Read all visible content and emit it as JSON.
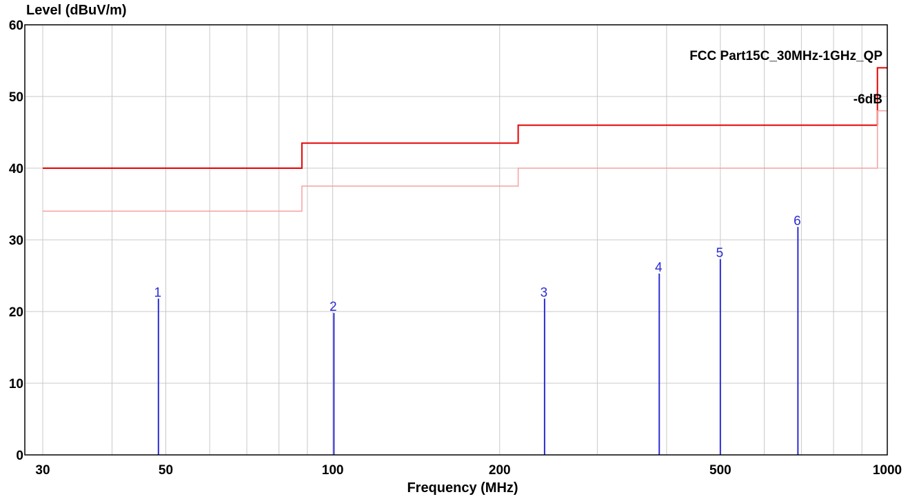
{
  "chart_data": {
    "type": "line",
    "ylabel": "Level (dBuV/m)",
    "xlabel": "Frequency (MHz)",
    "xscale": "log",
    "xlim": [
      30,
      1000
    ],
    "ylim": [
      0,
      60
    ],
    "grid": true,
    "x_ticks": [
      {
        "value": 30,
        "label": "30"
      },
      {
        "value": 50,
        "label": "50"
      },
      {
        "value": 100,
        "label": "100"
      },
      {
        "value": 200,
        "label": "200"
      },
      {
        "value": 500,
        "label": "500"
      },
      {
        "value": 1000,
        "label": "1000"
      }
    ],
    "x_minor_grid": [
      40,
      60,
      70,
      80,
      90,
      300,
      400,
      600,
      700,
      800,
      900
    ],
    "y_ticks": [
      0,
      10,
      20,
      30,
      40,
      50,
      60
    ],
    "series": [
      {
        "name": "FCC Part15C_30MHz-1GHz_QP",
        "color": "#e60000",
        "points": [
          [
            30,
            40
          ],
          [
            88,
            40
          ],
          [
            88,
            43.5
          ],
          [
            216,
            43.5
          ],
          [
            216,
            46
          ],
          [
            960,
            46
          ],
          [
            960,
            54
          ],
          [
            1000,
            54
          ]
        ]
      },
      {
        "name": "-6dB",
        "color": "#f4a0a0",
        "points": [
          [
            30,
            34
          ],
          [
            88,
            34
          ],
          [
            88,
            37.5
          ],
          [
            216,
            37.5
          ],
          [
            216,
            40
          ],
          [
            960,
            40
          ],
          [
            960,
            48
          ],
          [
            1000,
            48
          ]
        ]
      }
    ],
    "markers": {
      "color": "#2b2bd6",
      "items": [
        {
          "label": "1",
          "x": 48.5,
          "y": 21.8
        },
        {
          "label": "2",
          "x": 100.5,
          "y": 19.8
        },
        {
          "label": "3",
          "x": 241,
          "y": 21.8
        },
        {
          "label": "4",
          "x": 388,
          "y": 25.3
        },
        {
          "label": "5",
          "x": 500,
          "y": 27.3
        },
        {
          "label": "6",
          "x": 690,
          "y": 31.8
        }
      ]
    }
  }
}
